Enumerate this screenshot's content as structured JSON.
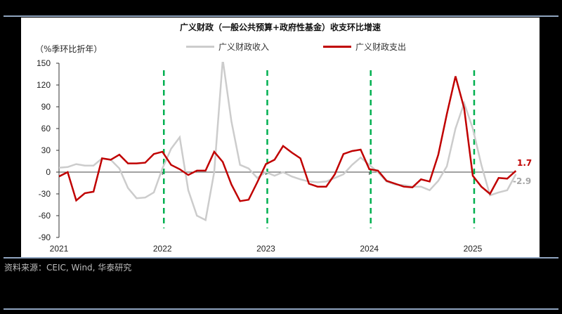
{
  "header": {
    "title": "广义财政（一般公共预算+政府性基金）收支环比增速",
    "unit_label": "（%季环比折年）"
  },
  "legend": [
    {
      "label": "广义财政收入",
      "color": "#cccccc"
    },
    {
      "label": "广义财政支出",
      "color": "#c00000"
    }
  ],
  "annotations": {
    "expenditure_last": "1.7",
    "revenue_last": "-2.9",
    "expenditure_color": "#c00000",
    "revenue_color": "#a6a6a6",
    "marker_color": "#00b050"
  },
  "footer": {
    "source": "资料来源：CEIC, Wind, 华泰研究"
  },
  "chart_data": {
    "type": "line",
    "title": "广义财政（一般公共预算+政府性基金）收支环比增速",
    "ylabel": "%季环比折年",
    "xlabel": "",
    "ylim": [
      -90,
      150
    ],
    "yticks": [
      -90,
      -60,
      -30,
      0,
      30,
      60,
      90,
      120,
      150
    ],
    "xtick_labels": [
      "2021",
      "2022",
      "2023",
      "2024",
      "2025"
    ],
    "x_start": "2021-01",
    "x_end": "2025-05",
    "frequency": "monthly",
    "grid": false,
    "legend_position": "top",
    "vertical_markers": [
      "2022-01",
      "2023-01",
      "2024-01",
      "2025-01"
    ],
    "series": [
      {
        "name": "广义财政收入",
        "color": "#cccccc",
        "values": [
          6,
          7,
          11,
          9,
          9,
          19,
          17,
          5,
          -22,
          -36,
          -35,
          -28,
          5,
          32,
          48,
          -25,
          -60,
          -66,
          0,
          155,
          70,
          10,
          5,
          -8,
          0,
          -5,
          0,
          -6,
          -10,
          -13,
          -14,
          -13,
          -8,
          -3,
          10,
          20,
          10,
          0,
          -13,
          -17,
          -18,
          -20,
          -20,
          -25,
          -12,
          8,
          60,
          95,
          60,
          10,
          -32,
          -28,
          -25,
          -2.9
        ]
      },
      {
        "name": "广义财政支出",
        "color": "#c00000",
        "values": [
          -6,
          0,
          -39,
          -29,
          -27,
          19,
          17,
          24,
          12,
          12,
          13,
          25,
          28,
          10,
          4,
          -4,
          2,
          2,
          28,
          14,
          -17,
          -40,
          -38,
          -14,
          11,
          17,
          36,
          27,
          19,
          -16,
          -20,
          -20,
          -3,
          25,
          29,
          31,
          4,
          2,
          -12,
          -16,
          -20,
          -21,
          -10,
          -13,
          24,
          80,
          132,
          88,
          -5,
          -20,
          -30,
          -8,
          -9,
          1.7
        ]
      }
    ],
    "annotations": [
      {
        "series": "广义财政支出",
        "text": "1.7"
      },
      {
        "series": "广义财政收入",
        "text": "-2.9"
      }
    ]
  }
}
